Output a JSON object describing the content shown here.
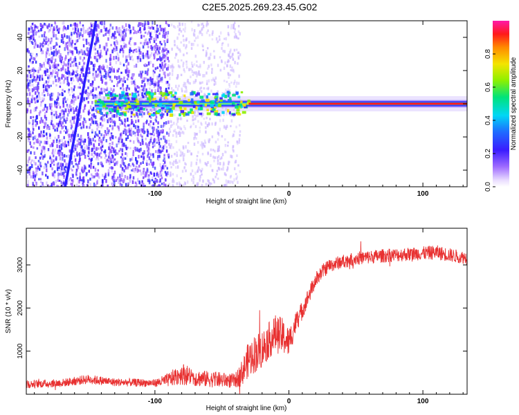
{
  "title": "C2E5.2025.269.23.45.G02",
  "chart_data": [
    {
      "type": "heatmap",
      "title": "C2E5.2025.269.23.45.G02",
      "xlabel": "Height of straight line (km)",
      "ylabel": "Frequency (Hz)",
      "xlim": [
        -196,
        133
      ],
      "ylim": [
        -50,
        50
      ],
      "xticks": [
        -100,
        0,
        100
      ],
      "yticks": [
        -40,
        -20,
        0,
        20,
        40
      ],
      "xtick_labels": [
        "-100",
        "0",
        "100"
      ],
      "ytick_labels": [
        "-40",
        "-20",
        "0",
        "20",
        "40"
      ],
      "grid": false,
      "colorbar": {
        "label": "Normalized spectral amplitude",
        "range": [
          0,
          1
        ],
        "ticks": [
          0.0,
          0.2,
          0.4,
          0.6,
          0.8
        ],
        "tick_labels": [
          "0.0",
          "0.2",
          "0.4",
          "0.6",
          "0.8"
        ],
        "colormap": "rainbow (purple-blue-cyan-green-yellow-red-magenta)"
      },
      "features": {
        "noise_region_x": [
          -196,
          -90
        ],
        "sparse_noise_region_x": [
          -90,
          -37
        ],
        "carrier_center_hz": 0,
        "carrier_band_start_x": -145,
        "slanted_track": {
          "x_at_top": -144,
          "x_at_bottom": -167,
          "y_top": 50,
          "y_bottom": -50
        }
      }
    },
    {
      "type": "line",
      "title": "",
      "xlabel": "Height of straight line (km)",
      "ylabel": "SNR (10 * v/v)",
      "xlim": [
        -196,
        133
      ],
      "ylim": [
        0,
        3850
      ],
      "xticks": [
        -100,
        0,
        100
      ],
      "yticks": [
        1000,
        2000,
        3000
      ],
      "xtick_labels": [
        "-100",
        "0",
        "100"
      ],
      "ytick_labels": [
        "1000",
        "2000",
        "3000"
      ],
      "grid": false,
      "color": "#e83030",
      "series": [
        {
          "name": "SNR",
          "x": [
            -196,
            -170,
            -150,
            -130,
            -100,
            -90,
            -80,
            -70,
            -60,
            -50,
            -40,
            -35,
            -30,
            -25,
            -20,
            -15,
            -10,
            -5,
            0,
            5,
            10,
            15,
            20,
            25,
            30,
            40,
            50,
            60,
            70,
            80,
            90,
            100,
            110,
            120,
            133
          ],
          "y": [
            230,
            260,
            350,
            280,
            260,
            330,
            480,
            380,
            350,
            330,
            310,
            500,
            820,
            950,
            1050,
            1250,
            1400,
            1350,
            1200,
            1650,
            1950,
            2300,
            2650,
            2850,
            2980,
            3080,
            3150,
            3180,
            3210,
            3230,
            3250,
            3270,
            3290,
            3230,
            3160
          ],
          "noise_amplitude": [
            90,
            95,
            110,
            95,
            90,
            160,
            260,
            200,
            190,
            180,
            170,
            300,
            420,
            450,
            450,
            420,
            450,
            430,
            350,
            260,
            220,
            200,
            180,
            170,
            160,
            160,
            160,
            160,
            160,
            160,
            160,
            160,
            170,
            160,
            150
          ]
        }
      ]
    }
  ]
}
